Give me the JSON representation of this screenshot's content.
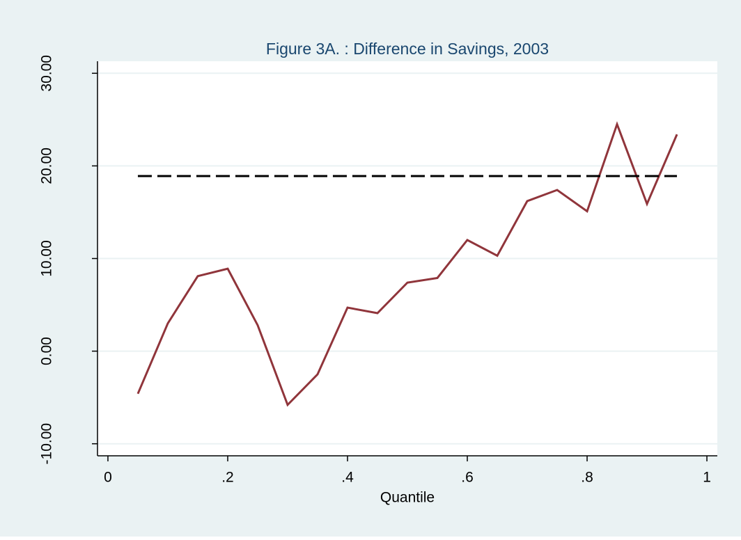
{
  "chart_data": {
    "type": "line",
    "title": "Figure 3A. : Difference in Savings, 2003",
    "xlabel": "Quantile",
    "x": [
      0.05,
      0.1,
      0.15,
      0.2,
      0.25,
      0.3,
      0.35,
      0.4,
      0.45,
      0.5,
      0.55,
      0.6,
      0.65,
      0.7,
      0.75,
      0.8,
      0.85,
      0.9,
      0.95
    ],
    "series": [
      {
        "color": "#90353b",
        "values": [
          -4.6,
          3.0,
          8.1,
          8.9,
          2.8,
          -5.8,
          -2.5,
          4.7,
          4.1,
          7.4,
          7.9,
          12.0,
          10.3,
          16.2,
          17.4,
          15.1,
          24.5,
          15.9,
          23.4
        ]
      },
      {
        "color": "#000000",
        "dashed": true,
        "x": [
          0.05,
          0.95
        ],
        "values": [
          18.9,
          18.9
        ]
      }
    ],
    "xlim": [
      -0.0174,
      1.0174
    ],
    "ylim": [
      -11.3,
      31.3
    ],
    "xticks": [
      0,
      {
        "value": 0.2,
        "label": ".2"
      },
      {
        "value": 0.4,
        "label": ".4"
      },
      {
        "value": 0.6,
        "label": ".6"
      },
      {
        "value": 0.8,
        "label": ".8"
      },
      1
    ],
    "yticks": [
      {
        "value": -10,
        "label": "-10.00"
      },
      {
        "value": 0,
        "label": "0.00"
      },
      {
        "value": 10,
        "label": "10.00"
      },
      {
        "value": 20,
        "label": "20.00"
      },
      {
        "value": 30,
        "label": "30.00"
      }
    ],
    "grid": true
  }
}
